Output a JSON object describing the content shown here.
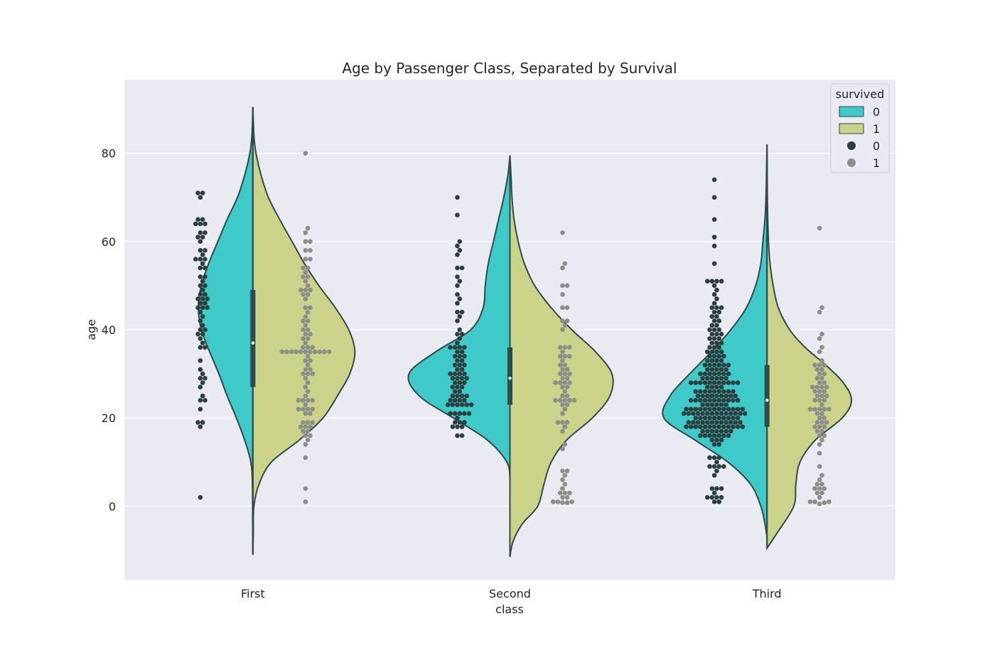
{
  "chart_data": {
    "type": "violin",
    "title": "Age by Passenger Class, Separated by Survival",
    "xlabel": "class",
    "ylabel": "age",
    "categories": [
      "First",
      "Second",
      "Third"
    ],
    "ylim": [
      -16.7,
      96.7
    ],
    "yticks": [
      0,
      20,
      40,
      60,
      80
    ],
    "grid": true,
    "legend": {
      "title": "survived",
      "placement": "top-right",
      "entries": [
        {
          "label": "0",
          "kind": "patch",
          "color": "#40c9c9"
        },
        {
          "label": "1",
          "kind": "patch",
          "color": "#cbd38a"
        },
        {
          "label": "0",
          "kind": "marker",
          "color": "#2b3f3f"
        },
        {
          "label": "1",
          "kind": "marker",
          "color": "#8b8f88"
        }
      ]
    },
    "colors": {
      "violin_0": "#40c9c9",
      "violin_1": "#cbd38a",
      "dots_0": "#2b3f3f",
      "dots_1": "#8b8f88",
      "background": "#eaeaf2",
      "outline": "#2f4a4a"
    },
    "violins": [
      {
        "category": "First",
        "series_0": {
          "profile": [
            [
              -11,
              0
            ],
            [
              -4,
              0.002
            ],
            [
              5,
              0.005
            ],
            [
              10,
              0.02
            ],
            [
              15,
              0.08
            ],
            [
              20,
              0.16
            ],
            [
              25,
              0.25
            ],
            [
              30,
              0.33
            ],
            [
              35,
              0.42
            ],
            [
              40,
              0.5
            ],
            [
              45,
              0.53
            ],
            [
              50,
              0.5
            ],
            [
              55,
              0.43
            ],
            [
              60,
              0.34
            ],
            [
              65,
              0.25
            ],
            [
              70,
              0.15
            ],
            [
              75,
              0.08
            ],
            [
              80,
              0.03
            ],
            [
              84,
              0.01
            ],
            [
              90.5,
              0
            ]
          ]
        },
        "series_1": {
          "profile": [
            [
              -11,
              0
            ],
            [
              -6,
              0.004
            ],
            [
              0,
              0.01
            ],
            [
              5,
              0.06
            ],
            [
              10,
              0.18
            ],
            [
              15,
              0.45
            ],
            [
              20,
              0.68
            ],
            [
              25,
              0.82
            ],
            [
              30,
              0.94
            ],
            [
              35,
              0.99
            ],
            [
              40,
              0.93
            ],
            [
              45,
              0.8
            ],
            [
              50,
              0.64
            ],
            [
              55,
              0.5
            ],
            [
              60,
              0.38
            ],
            [
              65,
              0.26
            ],
            [
              70,
              0.15
            ],
            [
              75,
              0.08
            ],
            [
              80,
              0.03
            ],
            [
              84,
              0.01
            ],
            [
              90.5,
              0
            ]
          ]
        },
        "box": {
          "q1": 27,
          "median": 37,
          "q3": 49
        }
      },
      {
        "category": "Second",
        "series_0": {
          "profile": [
            [
              6,
              0
            ],
            [
              10,
              0.03
            ],
            [
              15,
              0.22
            ],
            [
              20,
              0.55
            ],
            [
              25,
              0.88
            ],
            [
              30,
              0.98
            ],
            [
              35,
              0.72
            ],
            [
              40,
              0.38
            ],
            [
              45,
              0.26
            ],
            [
              50,
              0.24
            ],
            [
              55,
              0.21
            ],
            [
              60,
              0.16
            ],
            [
              65,
              0.11
            ],
            [
              70,
              0.06
            ],
            [
              75,
              0.02
            ],
            [
              79.5,
              0
            ]
          ]
        },
        "series_1": {
          "profile": [
            [
              -11.5,
              0
            ],
            [
              -8,
              0.03
            ],
            [
              -4,
              0.12
            ],
            [
              0,
              0.27
            ],
            [
              5,
              0.33
            ],
            [
              10,
              0.4
            ],
            [
              15,
              0.55
            ],
            [
              20,
              0.8
            ],
            [
              25,
              0.97
            ],
            [
              30,
              0.99
            ],
            [
              35,
              0.83
            ],
            [
              40,
              0.6
            ],
            [
              45,
              0.4
            ],
            [
              50,
              0.24
            ],
            [
              55,
              0.14
            ],
            [
              60,
              0.08
            ],
            [
              65,
              0.04
            ],
            [
              70,
              0.02
            ],
            [
              75,
              0.01
            ],
            [
              79.5,
              0
            ]
          ]
        },
        "box": {
          "q1": 23,
          "median": 29,
          "q3": 36
        }
      },
      {
        "category": "Third",
        "series_0": {
          "profile": [
            [
              -7,
              0
            ],
            [
              -4,
              0.02
            ],
            [
              0,
              0.06
            ],
            [
              5,
              0.16
            ],
            [
              10,
              0.38
            ],
            [
              15,
              0.7
            ],
            [
              20,
              1.0
            ],
            [
              25,
              0.94
            ],
            [
              30,
              0.75
            ],
            [
              35,
              0.54
            ],
            [
              40,
              0.35
            ],
            [
              45,
              0.2
            ],
            [
              50,
              0.11
            ],
            [
              55,
              0.06
            ],
            [
              60,
              0.04
            ],
            [
              65,
              0.02
            ],
            [
              70,
              0.01
            ],
            [
              75,
              0.005
            ],
            [
              80,
              0.002
            ],
            [
              82,
              0
            ]
          ]
        },
        "series_1": {
          "profile": [
            [
              -9.5,
              0
            ],
            [
              -6,
              0.1
            ],
            [
              0,
              0.26
            ],
            [
              5,
              0.28
            ],
            [
              10,
              0.32
            ],
            [
              15,
              0.47
            ],
            [
              20,
              0.73
            ],
            [
              24,
              0.82
            ],
            [
              28,
              0.74
            ],
            [
              32,
              0.57
            ],
            [
              36,
              0.37
            ],
            [
              40,
              0.22
            ],
            [
              45,
              0.11
            ],
            [
              50,
              0.06
            ],
            [
              55,
              0.03
            ],
            [
              60,
              0.015
            ],
            [
              65,
              0.008
            ],
            [
              70,
              0.004
            ],
            [
              80,
              0
            ]
          ]
        },
        "box": {
          "q1": 18,
          "median": 24,
          "q3": 32
        }
      }
    ],
    "swarm": [
      {
        "category": "First",
        "survived_0": [
          2,
          18,
          19,
          19,
          22,
          24,
          24,
          25,
          27,
          28,
          29,
          29,
          30,
          31,
          33,
          36,
          36,
          37,
          38,
          39,
          39,
          40,
          40,
          41,
          42,
          43,
          44,
          45,
          45,
          45,
          46,
          46,
          47,
          47,
          47,
          48,
          48,
          49,
          50,
          50,
          51,
          52,
          52,
          54,
          54,
          55,
          56,
          56,
          56,
          57,
          58,
          58,
          60,
          61,
          61,
          62,
          62,
          64,
          64,
          64,
          65,
          65,
          70,
          71,
          71
        ],
        "survived_1": [
          1,
          4,
          11,
          14,
          15,
          16,
          16,
          17,
          17,
          18,
          18,
          18,
          19,
          19,
          19,
          21,
          21,
          22,
          22,
          22,
          22,
          23,
          24,
          24,
          24,
          24,
          25,
          26,
          27,
          28,
          29,
          30,
          30,
          30,
          31,
          31,
          32,
          33,
          33,
          34,
          35,
          35,
          35,
          35,
          35,
          35,
          35,
          35,
          35,
          35,
          35,
          36,
          36,
          36,
          37,
          38,
          38,
          39,
          39,
          40,
          40,
          41,
          42,
          42,
          43,
          44,
          45,
          45,
          47,
          48,
          48,
          49,
          49,
          49,
          50,
          51,
          52,
          52,
          53,
          54,
          54,
          56,
          56,
          58,
          58,
          60,
          60,
          62,
          63,
          80
        ]
      },
      {
        "category": "Second",
        "survived_0": [
          16,
          16,
          18,
          18,
          18,
          19,
          19,
          19,
          20,
          21,
          21,
          21,
          21,
          21,
          23,
          23,
          23,
          23,
          23,
          23,
          24,
          24,
          24,
          24,
          25,
          25,
          25,
          25,
          26,
          26,
          27,
          27,
          27,
          28,
          28,
          28,
          29,
          29,
          29,
          29,
          30,
          30,
          30,
          30,
          31,
          31,
          32,
          32,
          32,
          33,
          33,
          34,
          34,
          34,
          35,
          35,
          36,
          36,
          36,
          36,
          37,
          38,
          39,
          39,
          40,
          42,
          43,
          44,
          44,
          46,
          47,
          48,
          50,
          51,
          52,
          54,
          54,
          57,
          58,
          59,
          60,
          66,
          70
        ],
        "survived_1": [
          0.8,
          0.8,
          1,
          1,
          1,
          2,
          2,
          3,
          3,
          3,
          4,
          5,
          6,
          7,
          8,
          8,
          13,
          14,
          17,
          18,
          19,
          19,
          19,
          21,
          22,
          23,
          23,
          24,
          24,
          24,
          24,
          24,
          25,
          25,
          26,
          27,
          27,
          28,
          28,
          28,
          28,
          29,
          29,
          30,
          30,
          30,
          31,
          31,
          32,
          32,
          33,
          34,
          34,
          34,
          35,
          36,
          36,
          36,
          40,
          41,
          42,
          42,
          45,
          45,
          48,
          50,
          50,
          54,
          55,
          62
        ]
      },
      {
        "category": "Third",
        "survived_0": [
          1,
          1,
          2,
          2,
          2,
          2,
          3,
          4,
          4,
          4,
          7,
          8,
          9,
          9,
          9,
          9,
          10,
          11,
          11,
          11,
          14,
          14,
          15,
          15,
          15,
          16,
          16,
          16,
          16,
          16,
          16,
          16,
          17,
          17,
          17,
          17,
          17,
          17,
          17,
          18,
          18,
          18,
          18,
          18,
          18,
          18,
          18,
          18,
          18,
          18,
          18,
          18,
          19,
          19,
          19,
          19,
          19,
          19,
          19,
          19,
          19,
          19,
          19,
          19,
          20,
          20,
          20,
          20,
          20,
          20,
          20,
          20,
          20,
          20,
          21,
          21,
          21,
          21,
          21,
          21,
          21,
          21,
          21,
          21,
          21,
          21,
          21,
          21,
          22,
          22,
          22,
          22,
          22,
          22,
          22,
          22,
          22,
          22,
          22,
          22,
          22,
          23,
          23,
          23,
          23,
          23,
          23,
          24,
          24,
          24,
          24,
          24,
          24,
          24,
          24,
          24,
          24,
          24,
          25,
          25,
          25,
          25,
          25,
          25,
          25,
          25,
          25,
          26,
          26,
          26,
          26,
          26,
          26,
          26,
          26,
          26,
          27,
          27,
          27,
          27,
          28,
          28,
          28,
          28,
          28,
          28,
          28,
          28,
          28,
          28,
          28,
          29,
          29,
          29,
          29,
          29,
          29,
          30,
          30,
          30,
          30,
          30,
          30,
          30,
          31,
          31,
          31,
          31,
          31,
          32,
          32,
          32,
          32,
          32,
          32,
          33,
          33,
          33,
          33,
          34,
          34,
          34,
          34,
          35,
          35,
          35,
          35,
          36,
          36,
          36,
          37,
          37,
          37,
          38,
          38,
          38,
          39,
          39,
          39,
          40,
          40,
          40,
          41,
          41,
          42,
          42,
          43,
          43,
          44,
          44,
          45,
          45,
          45,
          46,
          47,
          48,
          49,
          50,
          51,
          51,
          51,
          51,
          55,
          59,
          61,
          65,
          70,
          74
        ],
        "survived_1": [
          0.5,
          0.8,
          1,
          1,
          1,
          2,
          3,
          3,
          4,
          4,
          4,
          5,
          5,
          6,
          7,
          9,
          12,
          14,
          15,
          16,
          16,
          17,
          17,
          18,
          18,
          18,
          19,
          19,
          19,
          20,
          20,
          21,
          21,
          22,
          22,
          22,
          22,
          22,
          23,
          24,
          24,
          24,
          25,
          25,
          25,
          26,
          26,
          26,
          27,
          27,
          27,
          27,
          28,
          28,
          29,
          29,
          30,
          30,
          31,
          31,
          32,
          32,
          32,
          33,
          35,
          36,
          38,
          39,
          44,
          45,
          63
        ]
      }
    ]
  }
}
